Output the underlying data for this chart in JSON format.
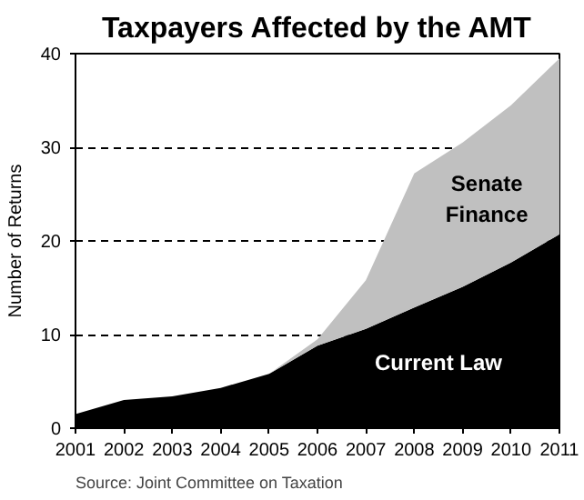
{
  "chart_data": {
    "type": "area",
    "title": "Taxpayers Affected by the AMT",
    "ylabel": "Number of Returns",
    "x": [
      2001,
      2002,
      2003,
      2004,
      2005,
      2006,
      2007,
      2008,
      2009,
      2010,
      2011
    ],
    "stacked": true,
    "series": [
      {
        "name": "Current Law",
        "color": "#000000",
        "values": [
          1.5,
          3.0,
          3.4,
          4.3,
          5.8,
          8.8,
          10.6,
          12.9,
          15.1,
          17.7,
          20.7
        ]
      },
      {
        "name": "Senate Finance",
        "color": "#c0c0c0",
        "values": [
          0,
          0,
          0,
          0,
          0,
          0.7,
          5.2,
          14.3,
          15.4,
          16.8,
          18.8
        ]
      }
    ],
    "xlim": [
      2001,
      2011
    ],
    "xticks": [
      2001,
      2002,
      2003,
      2004,
      2005,
      2006,
      2007,
      2008,
      2009,
      2010,
      2011
    ],
    "ylim": [
      0,
      40
    ],
    "yticks": [
      0,
      10,
      20,
      30,
      40
    ],
    "grid": "y",
    "annotations": [
      "Source: Joint Committee on Taxation"
    ]
  }
}
